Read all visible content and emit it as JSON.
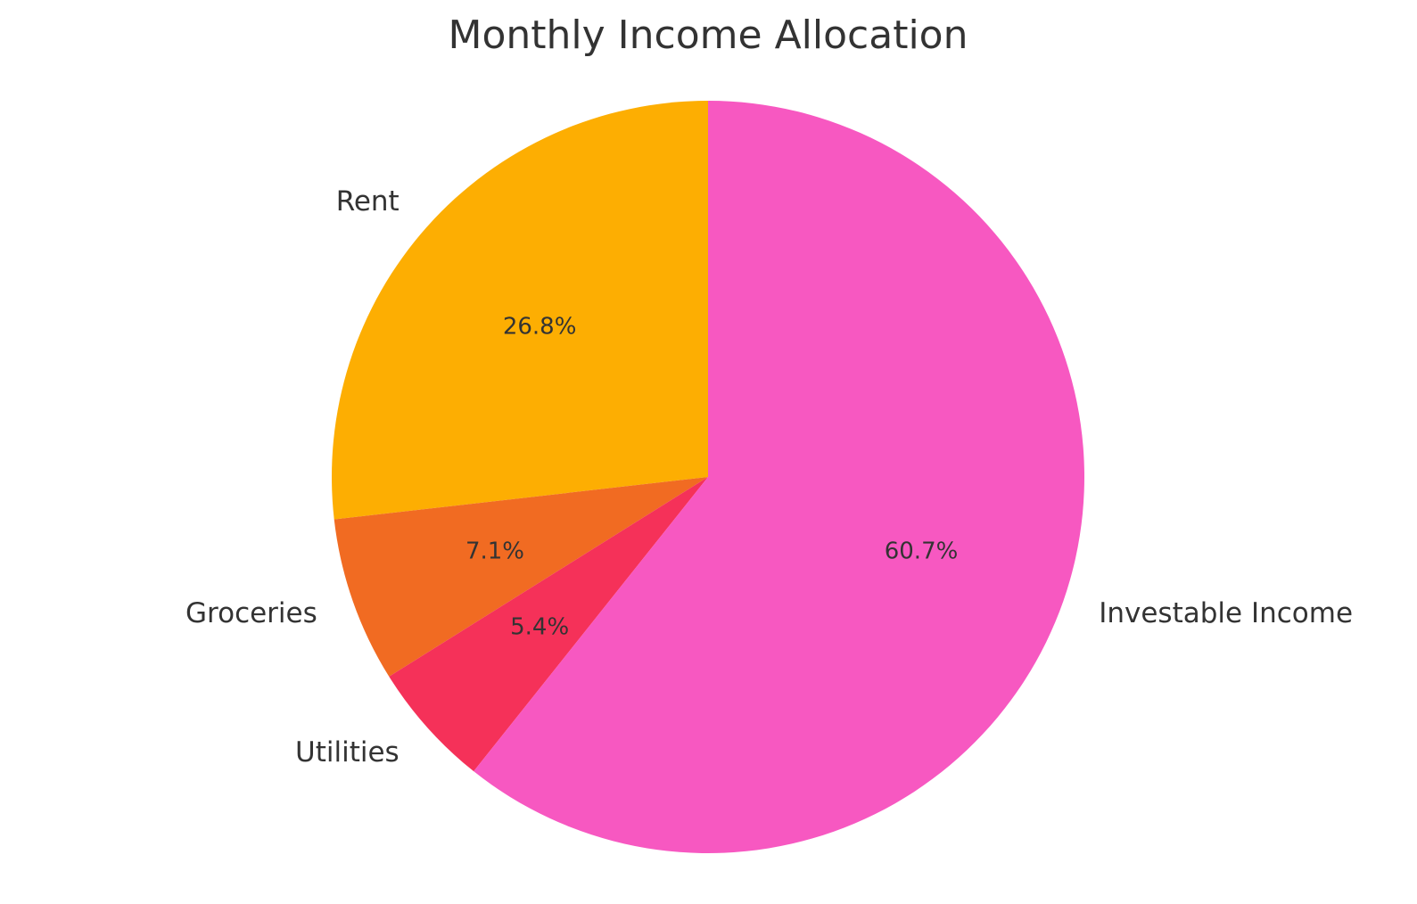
{
  "chart_data": {
    "type": "pie",
    "title": "Monthly Income Allocation",
    "categories": [
      "Rent",
      "Groceries",
      "Utilities",
      "Investable Income"
    ],
    "values": [
      26.8,
      7.1,
      5.4,
      60.7
    ],
    "value_labels": [
      "26.8%",
      "7.1%",
      "5.4%",
      "60.7%"
    ],
    "colors": [
      "#FDAE02",
      "#F16B22",
      "#F53159",
      "#F758C1"
    ],
    "start_angle_deg": 90,
    "direction": "counterclockwise",
    "legend": "none"
  }
}
